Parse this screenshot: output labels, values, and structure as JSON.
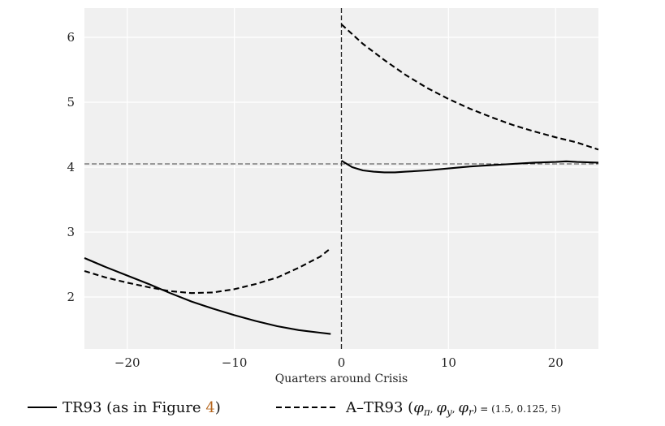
{
  "chart_data": {
    "type": "line",
    "title": "",
    "xlabel": "Quarters around Crisis",
    "ylabel": "",
    "xlim": [
      -24,
      24
    ],
    "ylim": [
      1.2,
      6.45
    ],
    "xticks": [
      -20,
      -10,
      0,
      10,
      20
    ],
    "xtick_labels": [
      "−20",
      "−10",
      "0",
      "10",
      "20"
    ],
    "yticks": [
      2,
      3,
      4,
      5,
      6
    ],
    "ytick_labels": [
      "2",
      "3",
      "4",
      "5",
      "6"
    ],
    "grid": true,
    "background": "#f0f0f0",
    "reference_lines": {
      "horizontal_y": 4.05,
      "vertical_x": 0
    },
    "series": [
      {
        "name": "TR93 (as in Figure 4)",
        "style": "solid",
        "color": "#000000",
        "segments": [
          {
            "x": [
              -24,
              -22,
              -20,
              -18,
              -16,
              -14,
              -12,
              -10,
              -8,
              -6,
              -4,
              -2,
              -1
            ],
            "y": [
              2.6,
              2.46,
              2.33,
              2.2,
              2.06,
              1.93,
              1.82,
              1.72,
              1.63,
              1.55,
              1.49,
              1.45,
              1.43
            ]
          },
          {
            "x": [
              0,
              1,
              2,
              3,
              4,
              5,
              6,
              8,
              10,
              12,
              14,
              16,
              18,
              20,
              21,
              22,
              24
            ],
            "y": [
              4.1,
              4.0,
              3.95,
              3.93,
              3.92,
              3.92,
              3.93,
              3.95,
              3.98,
              4.01,
              4.03,
              4.05,
              4.07,
              4.08,
              4.09,
              4.08,
              4.07
            ]
          }
        ]
      },
      {
        "name": "A–TR93 (φπ, φy, φr) = (1.5, 0.125, 5)",
        "style": "dashed",
        "color": "#000000",
        "segments": [
          {
            "x": [
              -24,
              -22,
              -20,
              -18,
              -16,
              -14,
              -12,
              -10,
              -8,
              -6,
              -4,
              -2,
              -1
            ],
            "y": [
              2.4,
              2.3,
              2.22,
              2.15,
              2.09,
              2.06,
              2.07,
              2.12,
              2.2,
              2.3,
              2.45,
              2.62,
              2.75
            ]
          },
          {
            "x": [
              0,
              1,
              2,
              4,
              6,
              8,
              10,
              12,
              14,
              16,
              18,
              20,
              22,
              24
            ],
            "y": [
              6.2,
              6.05,
              5.9,
              5.65,
              5.42,
              5.22,
              5.05,
              4.9,
              4.77,
              4.65,
              4.55,
              4.46,
              4.38,
              4.27
            ]
          }
        ]
      }
    ],
    "legend": {
      "placement": "bottom",
      "entries": [
        {
          "series": 0,
          "text_before": "TR93 (as in Figure ",
          "text_ref": "4",
          "text_after": ")"
        },
        {
          "series": 1,
          "text_prefix": "A–TR93 (",
          "text_vars": "φ",
          "text_values": ") = (1.5, 0.125, 5)"
        }
      ]
    }
  }
}
